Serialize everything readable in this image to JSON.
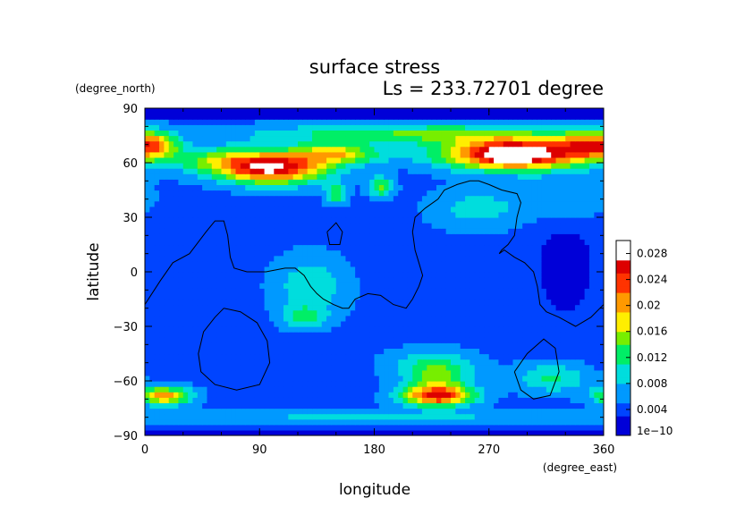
{
  "chart_data": {
    "type": "heatmap",
    "title": "surface stress",
    "subtitle": "Ls = 233.72701 degree",
    "xlabel": "longitude",
    "ylabel": "latitude",
    "x_units": "(degree_east)",
    "y_units": "(degree_north)",
    "xlim": [
      0,
      360
    ],
    "ylim": [
      -90,
      90
    ],
    "x_ticks": [
      "0",
      "90",
      "180",
      "270",
      "360"
    ],
    "y_ticks": [
      "90",
      "60",
      "30",
      "0",
      "−30",
      "−60",
      "−90"
    ],
    "colorbar": {
      "min": 0,
      "max": 0.03,
      "tick_labels": [
        "1e−10",
        "0.004",
        "0.008",
        "0.012",
        "0.016",
        "0.02",
        "0.024",
        "0.028"
      ],
      "tick_values": [
        0,
        0.004,
        0.008,
        0.012,
        0.016,
        0.02,
        0.024,
        0.028
      ]
    },
    "colormap": [
      "#0000d8",
      "#0044ff",
      "#0099ff",
      "#00dddd",
      "#00ee66",
      "#77ee00",
      "#ffee00",
      "#ff9900",
      "#ff3300",
      "#dd0000",
      "#ffffff"
    ],
    "background_value": 0.0045,
    "field_blobs": [
      {
        "lon": 100,
        "lat": 57,
        "sx": 30,
        "sy": 6,
        "v": 0.022
      },
      {
        "lon": 60,
        "lat": 62,
        "sx": 30,
        "sy": 5,
        "v": 0.008
      },
      {
        "lon": 150,
        "lat": 65,
        "sx": 25,
        "sy": 4,
        "v": 0.013
      },
      {
        "lon": 210,
        "lat": 76,
        "sx": 90,
        "sy": 4,
        "v": 0.009
      },
      {
        "lon": 10,
        "lat": 70,
        "sx": 12,
        "sy": 5,
        "v": 0.012
      },
      {
        "lon": 290,
        "lat": 65,
        "sx": 40,
        "sy": 6,
        "v": 0.026
      },
      {
        "lon": 290,
        "lat": 65,
        "sx": 12,
        "sy": 2.5,
        "v": 0.012
      },
      {
        "lon": 345,
        "lat": 70,
        "sx": 15,
        "sy": 5,
        "v": 0.012
      },
      {
        "lon": 150,
        "lat": 43,
        "sx": 6,
        "sy": 4,
        "v": 0.009
      },
      {
        "lon": 185,
        "lat": 47,
        "sx": 7,
        "sy": 4,
        "v": 0.01
      },
      {
        "lon": 130,
        "lat": -8,
        "sx": 20,
        "sy": 12,
        "v": 0.006
      },
      {
        "lon": 125,
        "lat": -25,
        "sx": 12,
        "sy": 4,
        "v": 0.007
      },
      {
        "lon": 230,
        "lat": -68,
        "sx": 20,
        "sy": 4,
        "v": 0.02
      },
      {
        "lon": 230,
        "lat": -58,
        "sx": 18,
        "sy": 6,
        "v": 0.008
      },
      {
        "lon": 15,
        "lat": -68,
        "sx": 15,
        "sy": 3.5,
        "v": 0.016
      },
      {
        "lon": 320,
        "lat": -58,
        "sx": 20,
        "sy": 6,
        "v": 0.007
      },
      {
        "lon": 180,
        "lat": -80,
        "sx": 180,
        "sy": 3,
        "v": 0.004
      },
      {
        "lon": 260,
        "lat": 35,
        "sx": 25,
        "sy": 8,
        "v": 0.005
      },
      {
        "lon": 330,
        "lat": 40,
        "sx": 25,
        "sy": 10,
        "v": 0.004
      },
      {
        "lon": 330,
        "lat": 5,
        "sx": 20,
        "sy": 25,
        "v": -0.003
      },
      {
        "lon": 225,
        "lat": -50,
        "sx": 25,
        "sy": 6,
        "v": 0.005
      }
    ],
    "contours": [
      [
        [
          0,
          -18
        ],
        [
          12,
          -5
        ],
        [
          22,
          5
        ],
        [
          35,
          10
        ],
        [
          48,
          22
        ],
        [
          55,
          28
        ],
        [
          62,
          28
        ],
        [
          65,
          20
        ],
        [
          67,
          8
        ],
        [
          70,
          2
        ],
        [
          80,
          0
        ],
        [
          95,
          0
        ],
        [
          110,
          2
        ],
        [
          118,
          2
        ],
        [
          125,
          -2
        ],
        [
          130,
          -8
        ],
        [
          135,
          -12
        ],
        [
          140,
          -15
        ],
        [
          148,
          -18
        ],
        [
          155,
          -20
        ],
        [
          160,
          -20
        ],
        [
          165,
          -15
        ],
        [
          175,
          -12
        ],
        [
          185,
          -13
        ],
        [
          195,
          -18
        ],
        [
          205,
          -20
        ],
        [
          210,
          -15
        ],
        [
          215,
          -8
        ],
        [
          218,
          -2
        ],
        [
          215,
          5
        ],
        [
          212,
          12
        ],
        [
          210,
          22
        ],
        [
          212,
          30
        ],
        [
          220,
          35
        ],
        [
          230,
          40
        ],
        [
          235,
          45
        ],
        [
          245,
          48
        ],
        [
          255,
          50
        ],
        [
          262,
          50
        ],
        [
          270,
          48
        ],
        [
          280,
          45
        ],
        [
          292,
          43
        ],
        [
          295,
          38
        ],
        [
          292,
          30
        ],
        [
          290,
          20
        ],
        [
          285,
          15
        ],
        [
          280,
          12
        ],
        [
          278,
          10
        ],
        [
          282,
          12
        ],
        [
          290,
          8
        ],
        [
          298,
          5
        ],
        [
          305,
          0
        ],
        [
          308,
          -8
        ],
        [
          310,
          -18
        ],
        [
          315,
          -22
        ],
        [
          325,
          -25
        ],
        [
          338,
          -30
        ],
        [
          350,
          -25
        ],
        [
          360,
          -18
        ]
      ],
      [
        [
          62,
          -20
        ],
        [
          75,
          -22
        ],
        [
          88,
          -28
        ],
        [
          96,
          -38
        ],
        [
          98,
          -50
        ],
        [
          90,
          -62
        ],
        [
          72,
          -65
        ],
        [
          55,
          -62
        ],
        [
          44,
          -55
        ],
        [
          42,
          -45
        ],
        [
          46,
          -33
        ],
        [
          55,
          -25
        ],
        [
          62,
          -20
        ]
      ],
      [
        [
          290,
          -55
        ],
        [
          295,
          -65
        ],
        [
          305,
          -70
        ],
        [
          318,
          -68
        ],
        [
          325,
          -55
        ],
        [
          322,
          -42
        ],
        [
          313,
          -37
        ],
        [
          300,
          -45
        ],
        [
          290,
          -55
        ]
      ],
      [
        [
          143,
          22
        ],
        [
          150,
          27
        ],
        [
          155,
          22
        ],
        [
          153,
          15
        ],
        [
          145,
          15
        ],
        [
          143,
          22
        ]
      ]
    ]
  }
}
